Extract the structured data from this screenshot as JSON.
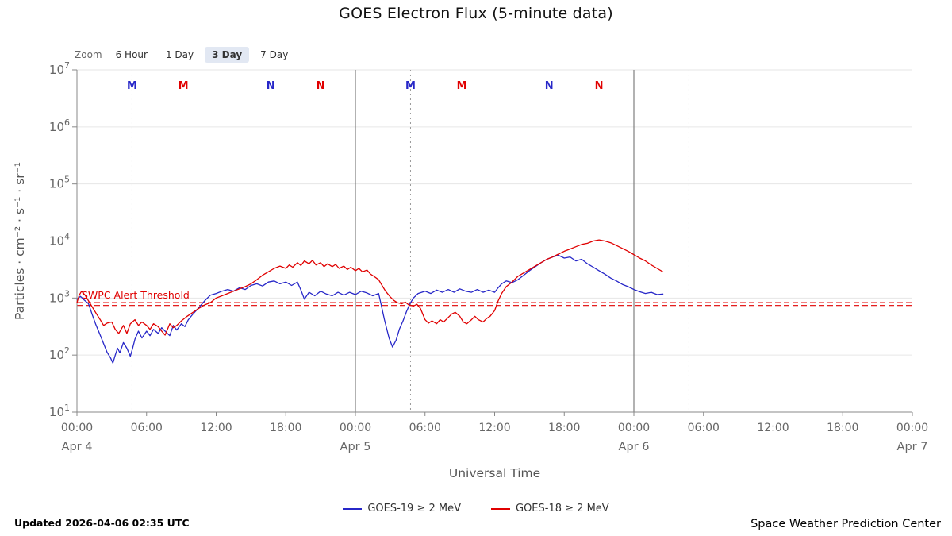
{
  "title": "GOES Electron Flux (5-minute data)",
  "zoom": {
    "label": "Zoom",
    "options": [
      {
        "label": "6 Hour",
        "selected": false
      },
      {
        "label": "1 Day",
        "selected": false
      },
      {
        "label": "3 Day",
        "selected": true
      },
      {
        "label": "7 Day",
        "selected": false
      }
    ]
  },
  "footer": {
    "updated": "Updated 2026-04-06 02:35 UTC",
    "source": "Space Weather Prediction Center"
  },
  "colors": {
    "goes19_blue": "#2727c8",
    "goes18_red": "#e00000",
    "axis_text": "#666666",
    "gridline": "#e6e6e6"
  },
  "chart_data": {
    "type": "line",
    "title": "GOES Electron Flux (5-minute data)",
    "xlabel": "Universal Time",
    "ylabel": "Particles · cm⁻² · s⁻¹ · sr⁻¹",
    "y_scale": "log10",
    "ylim_log": [
      1,
      7
    ],
    "y_tick_exponents": [
      1,
      2,
      3,
      4,
      5,
      6,
      7
    ],
    "x_hours_range": [
      0,
      72
    ],
    "x_ticks": [
      {
        "hour": 0,
        "label": "00:00"
      },
      {
        "hour": 6,
        "label": "06:00"
      },
      {
        "hour": 12,
        "label": "12:00"
      },
      {
        "hour": 18,
        "label": "18:00"
      },
      {
        "hour": 24,
        "label": "00:00"
      },
      {
        "hour": 30,
        "label": "06:00"
      },
      {
        "hour": 36,
        "label": "12:00"
      },
      {
        "hour": 42,
        "label": "18:00"
      },
      {
        "hour": 48,
        "label": "00:00"
      },
      {
        "hour": 54,
        "label": "06:00"
      },
      {
        "hour": 60,
        "label": "12:00"
      },
      {
        "hour": 66,
        "label": "18:00"
      },
      {
        "hour": 72,
        "label": "00:00"
      }
    ],
    "x_date_labels": [
      {
        "hour": 0,
        "label": "Apr 4"
      },
      {
        "hour": 24,
        "label": "Apr 5"
      },
      {
        "hour": 48,
        "label": "Apr 6"
      },
      {
        "hour": 72,
        "label": "Apr 7"
      }
    ],
    "day_boundary_hours": [
      24,
      48
    ],
    "dotted_line_hours": [
      4.75,
      28.75,
      52.75
    ],
    "satellite_markers": [
      {
        "hour": 4.75,
        "label": "M",
        "color": "#2727c8"
      },
      {
        "hour": 9.17,
        "label": "M",
        "color": "#e00000"
      },
      {
        "hour": 16.7,
        "label": "N",
        "color": "#2727c8"
      },
      {
        "hour": 21.0,
        "label": "N",
        "color": "#e00000"
      },
      {
        "hour": 28.75,
        "label": "M",
        "color": "#2727c8"
      },
      {
        "hour": 33.17,
        "label": "M",
        "color": "#e00000"
      },
      {
        "hour": 40.7,
        "label": "N",
        "color": "#2727c8"
      },
      {
        "hour": 45.0,
        "label": "N",
        "color": "#e00000"
      }
    ],
    "threshold": {
      "label": "SWPC Alert Threshold",
      "color": "#e00000",
      "lines_log10": [
        2.92,
        2.87
      ]
    },
    "legend_position": "bottom-center",
    "series": [
      {
        "name": "GOES-19 ≥ 2 MeV",
        "color": "#2727c8",
        "points_hour_log10flux": [
          [
            0,
            2.98
          ],
          [
            0.3,
            3.03
          ],
          [
            0.6,
            2.97
          ],
          [
            1,
            2.9
          ],
          [
            1.3,
            2.72
          ],
          [
            1.6,
            2.55
          ],
          [
            2,
            2.35
          ],
          [
            2.3,
            2.2
          ],
          [
            2.6,
            2.05
          ],
          [
            2.9,
            1.95
          ],
          [
            3.1,
            1.86
          ],
          [
            3.3,
            2.0
          ],
          [
            3.5,
            2.12
          ],
          [
            3.7,
            2.04
          ],
          [
            4,
            2.22
          ],
          [
            4.3,
            2.12
          ],
          [
            4.6,
            1.98
          ],
          [
            4.8,
            2.12
          ],
          [
            5,
            2.28
          ],
          [
            5.3,
            2.42
          ],
          [
            5.6,
            2.3
          ],
          [
            6,
            2.42
          ],
          [
            6.3,
            2.34
          ],
          [
            6.6,
            2.45
          ],
          [
            7,
            2.38
          ],
          [
            7.3,
            2.48
          ],
          [
            7.6,
            2.42
          ],
          [
            8,
            2.34
          ],
          [
            8.3,
            2.52
          ],
          [
            8.6,
            2.44
          ],
          [
            9,
            2.55
          ],
          [
            9.3,
            2.5
          ],
          [
            9.6,
            2.62
          ],
          [
            10,
            2.72
          ],
          [
            10.5,
            2.83
          ],
          [
            11,
            2.95
          ],
          [
            11.5,
            3.05
          ],
          [
            12,
            3.08
          ],
          [
            12.5,
            3.12
          ],
          [
            13,
            3.15
          ],
          [
            13.5,
            3.12
          ],
          [
            14,
            3.18
          ],
          [
            14.5,
            3.15
          ],
          [
            15,
            3.22
          ],
          [
            15.5,
            3.25
          ],
          [
            16,
            3.21
          ],
          [
            16.5,
            3.28
          ],
          [
            17,
            3.3
          ],
          [
            17.5,
            3.25
          ],
          [
            18,
            3.28
          ],
          [
            18.5,
            3.22
          ],
          [
            19,
            3.28
          ],
          [
            19.3,
            3.14
          ],
          [
            19.6,
            2.98
          ],
          [
            20,
            3.1
          ],
          [
            20.5,
            3.04
          ],
          [
            21,
            3.12
          ],
          [
            21.5,
            3.07
          ],
          [
            22,
            3.04
          ],
          [
            22.5,
            3.1
          ],
          [
            23,
            3.05
          ],
          [
            23.5,
            3.1
          ],
          [
            24,
            3.06
          ],
          [
            24.5,
            3.12
          ],
          [
            25,
            3.09
          ],
          [
            25.5,
            3.04
          ],
          [
            26,
            3.08
          ],
          [
            26.2,
            2.9
          ],
          [
            26.5,
            2.62
          ],
          [
            26.9,
            2.3
          ],
          [
            27.2,
            2.14
          ],
          [
            27.5,
            2.26
          ],
          [
            27.8,
            2.46
          ],
          [
            28.1,
            2.6
          ],
          [
            28.4,
            2.76
          ],
          [
            28.7,
            2.9
          ],
          [
            29,
            3.0
          ],
          [
            29.4,
            3.08
          ],
          [
            30,
            3.12
          ],
          [
            30.5,
            3.08
          ],
          [
            31,
            3.14
          ],
          [
            31.5,
            3.1
          ],
          [
            32,
            3.15
          ],
          [
            32.5,
            3.1
          ],
          [
            33,
            3.16
          ],
          [
            33.5,
            3.12
          ],
          [
            34,
            3.1
          ],
          [
            34.5,
            3.15
          ],
          [
            35,
            3.1
          ],
          [
            35.5,
            3.14
          ],
          [
            36,
            3.1
          ],
          [
            36.3,
            3.18
          ],
          [
            36.6,
            3.25
          ],
          [
            37,
            3.3
          ],
          [
            37.5,
            3.27
          ],
          [
            38,
            3.32
          ],
          [
            38.5,
            3.4
          ],
          [
            39,
            3.48
          ],
          [
            39.5,
            3.55
          ],
          [
            40,
            3.62
          ],
          [
            40.5,
            3.68
          ],
          [
            41,
            3.72
          ],
          [
            41.5,
            3.75
          ],
          [
            42,
            3.7
          ],
          [
            42.5,
            3.72
          ],
          [
            43,
            3.65
          ],
          [
            43.5,
            3.68
          ],
          [
            44,
            3.6
          ],
          [
            44.5,
            3.54
          ],
          [
            45,
            3.48
          ],
          [
            45.5,
            3.42
          ],
          [
            46,
            3.35
          ],
          [
            46.5,
            3.3
          ],
          [
            47,
            3.24
          ],
          [
            47.5,
            3.2
          ],
          [
            48,
            3.15
          ],
          [
            48.5,
            3.11
          ],
          [
            49,
            3.08
          ],
          [
            49.5,
            3.1
          ],
          [
            50,
            3.06
          ],
          [
            50.5,
            3.07
          ]
        ]
      },
      {
        "name": "GOES-18 ≥ 2 MeV",
        "color": "#e00000",
        "points_hour_log10flux": [
          [
            0,
            2.92
          ],
          [
            0.2,
            3.05
          ],
          [
            0.4,
            3.12
          ],
          [
            0.7,
            3.05
          ],
          [
            1,
            2.95
          ],
          [
            1.3,
            2.85
          ],
          [
            1.6,
            2.75
          ],
          [
            2,
            2.62
          ],
          [
            2.3,
            2.52
          ],
          [
            2.6,
            2.56
          ],
          [
            3,
            2.58
          ],
          [
            3.3,
            2.45
          ],
          [
            3.6,
            2.38
          ],
          [
            4,
            2.52
          ],
          [
            4.3,
            2.38
          ],
          [
            4.6,
            2.55
          ],
          [
            5,
            2.62
          ],
          [
            5.3,
            2.52
          ],
          [
            5.6,
            2.58
          ],
          [
            6,
            2.52
          ],
          [
            6.3,
            2.45
          ],
          [
            6.6,
            2.55
          ],
          [
            7,
            2.5
          ],
          [
            7.3,
            2.42
          ],
          [
            7.6,
            2.35
          ],
          [
            8,
            2.55
          ],
          [
            8.3,
            2.48
          ],
          [
            8.6,
            2.52
          ],
          [
            9,
            2.6
          ],
          [
            9.5,
            2.68
          ],
          [
            10,
            2.75
          ],
          [
            10.5,
            2.82
          ],
          [
            11,
            2.88
          ],
          [
            11.5,
            2.92
          ],
          [
            12,
            3.0
          ],
          [
            12.5,
            3.04
          ],
          [
            13,
            3.08
          ],
          [
            13.5,
            3.12
          ],
          [
            14,
            3.16
          ],
          [
            14.5,
            3.2
          ],
          [
            15,
            3.25
          ],
          [
            15.5,
            3.32
          ],
          [
            16,
            3.4
          ],
          [
            16.5,
            3.46
          ],
          [
            17,
            3.52
          ],
          [
            17.5,
            3.56
          ],
          [
            18,
            3.52
          ],
          [
            18.3,
            3.58
          ],
          [
            18.6,
            3.54
          ],
          [
            19,
            3.62
          ],
          [
            19.3,
            3.57
          ],
          [
            19.6,
            3.65
          ],
          [
            20,
            3.6
          ],
          [
            20.3,
            3.66
          ],
          [
            20.6,
            3.58
          ],
          [
            21,
            3.62
          ],
          [
            21.3,
            3.55
          ],
          [
            21.6,
            3.6
          ],
          [
            22,
            3.55
          ],
          [
            22.3,
            3.59
          ],
          [
            22.6,
            3.52
          ],
          [
            23,
            3.56
          ],
          [
            23.3,
            3.5
          ],
          [
            23.6,
            3.54
          ],
          [
            24,
            3.48
          ],
          [
            24.3,
            3.52
          ],
          [
            24.6,
            3.46
          ],
          [
            25,
            3.49
          ],
          [
            25.3,
            3.42
          ],
          [
            25.6,
            3.38
          ],
          [
            26,
            3.32
          ],
          [
            26.3,
            3.22
          ],
          [
            26.6,
            3.12
          ],
          [
            27,
            3.02
          ],
          [
            27.3,
            2.96
          ],
          [
            27.6,
            2.92
          ],
          [
            28,
            2.9
          ],
          [
            28.3,
            2.93
          ],
          [
            28.6,
            2.88
          ],
          [
            29,
            2.86
          ],
          [
            29.3,
            2.89
          ],
          [
            29.6,
            2.82
          ],
          [
            30,
            2.62
          ],
          [
            30.3,
            2.56
          ],
          [
            30.6,
            2.6
          ],
          [
            31,
            2.55
          ],
          [
            31.3,
            2.62
          ],
          [
            31.6,
            2.58
          ],
          [
            32,
            2.66
          ],
          [
            32.3,
            2.72
          ],
          [
            32.6,
            2.75
          ],
          [
            33,
            2.68
          ],
          [
            33.3,
            2.58
          ],
          [
            33.6,
            2.55
          ],
          [
            34,
            2.62
          ],
          [
            34.3,
            2.68
          ],
          [
            34.6,
            2.62
          ],
          [
            35,
            2.58
          ],
          [
            35.3,
            2.64
          ],
          [
            35.6,
            2.68
          ],
          [
            36,
            2.78
          ],
          [
            36.3,
            2.95
          ],
          [
            36.6,
            3.08
          ],
          [
            37,
            3.2
          ],
          [
            37.5,
            3.28
          ],
          [
            38,
            3.38
          ],
          [
            38.5,
            3.44
          ],
          [
            39,
            3.5
          ],
          [
            39.5,
            3.56
          ],
          [
            40,
            3.62
          ],
          [
            40.5,
            3.68
          ],
          [
            41,
            3.72
          ],
          [
            41.5,
            3.77
          ],
          [
            42,
            3.82
          ],
          [
            42.5,
            3.86
          ],
          [
            43,
            3.9
          ],
          [
            43.5,
            3.94
          ],
          [
            44,
            3.96
          ],
          [
            44.5,
            4.0
          ],
          [
            45,
            4.02
          ],
          [
            45.5,
            4.0
          ],
          [
            46,
            3.97
          ],
          [
            46.5,
            3.92
          ],
          [
            47,
            3.87
          ],
          [
            47.5,
            3.82
          ],
          [
            48,
            3.76
          ],
          [
            48.5,
            3.7
          ],
          [
            49,
            3.65
          ],
          [
            49.5,
            3.58
          ],
          [
            50,
            3.52
          ],
          [
            50.5,
            3.46
          ]
        ]
      }
    ]
  }
}
